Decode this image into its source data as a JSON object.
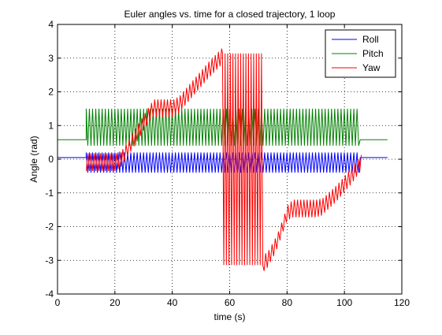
{
  "chart_data": {
    "type": "line",
    "title": "Euler angles vs. time for a closed trajectory, 1 loop",
    "xlabel": "time (s)",
    "ylabel": "Angle (rad)",
    "xlim": [
      0,
      120
    ],
    "ylim": [
      -4,
      4
    ],
    "xticks": [
      0,
      20,
      40,
      60,
      80,
      100,
      120
    ],
    "yticks": [
      -4,
      -3,
      -2,
      -1,
      0,
      1,
      2,
      3,
      4
    ],
    "grid": true,
    "legend_position": "top-right",
    "series": [
      {
        "name": "Roll",
        "color": "#0000ff",
        "x": [
          0,
          10,
          10,
          20,
          30,
          40,
          50,
          60,
          70,
          80,
          90,
          100,
          105.5,
          105.5,
          115
        ],
        "y": [
          0.05,
          0.05,
          0.05,
          0.05,
          0.05,
          0.05,
          0.05,
          0.05,
          0.05,
          0.05,
          0.05,
          0.05,
          0.05,
          0.05,
          0.05
        ],
        "oscillation": {
          "start": 10,
          "end": 105.5,
          "min": -0.4,
          "max": 0.2,
          "cycles": 86
        }
      },
      {
        "name": "Pitch",
        "color": "#008000",
        "x": [
          0,
          10,
          10,
          20,
          30,
          40,
          50,
          60,
          70,
          80,
          90,
          100,
          105.5,
          105.5,
          115
        ],
        "y": [
          0.58,
          0.58,
          0.58,
          0.58,
          0.58,
          0.58,
          0.58,
          0.58,
          0.58,
          0.58,
          0.58,
          0.58,
          0.58,
          0.58,
          0.58
        ],
        "oscillation": {
          "start": 10,
          "end": 105.5,
          "min": 0.4,
          "max": 1.5,
          "cycles": 86
        }
      },
      {
        "name": "Yaw",
        "color": "#ff0000",
        "x": [
          10,
          15,
          20,
          22,
          25,
          30,
          33,
          40,
          42,
          47,
          52,
          57,
          57.5,
          72,
          72.5,
          76,
          80,
          82,
          90,
          92,
          97,
          102,
          105.5
        ],
        "y": [
          0.0,
          0.0,
          0.0,
          0.1,
          0.5,
          1.2,
          1.6,
          1.6,
          1.7,
          2.2,
          2.7,
          3.14,
          -3.14,
          -3.14,
          -3.14,
          -2.6,
          -1.65,
          -1.55,
          -1.55,
          -1.5,
          -1.1,
          -0.6,
          -0.2
        ],
        "flip": {
          "start": 57.5,
          "end": 72,
          "min": -3.14,
          "max": 3.14,
          "cycles": 16
        },
        "oscillation_amplitude": 0.35,
        "oscillation_cycles": 86
      }
    ]
  }
}
